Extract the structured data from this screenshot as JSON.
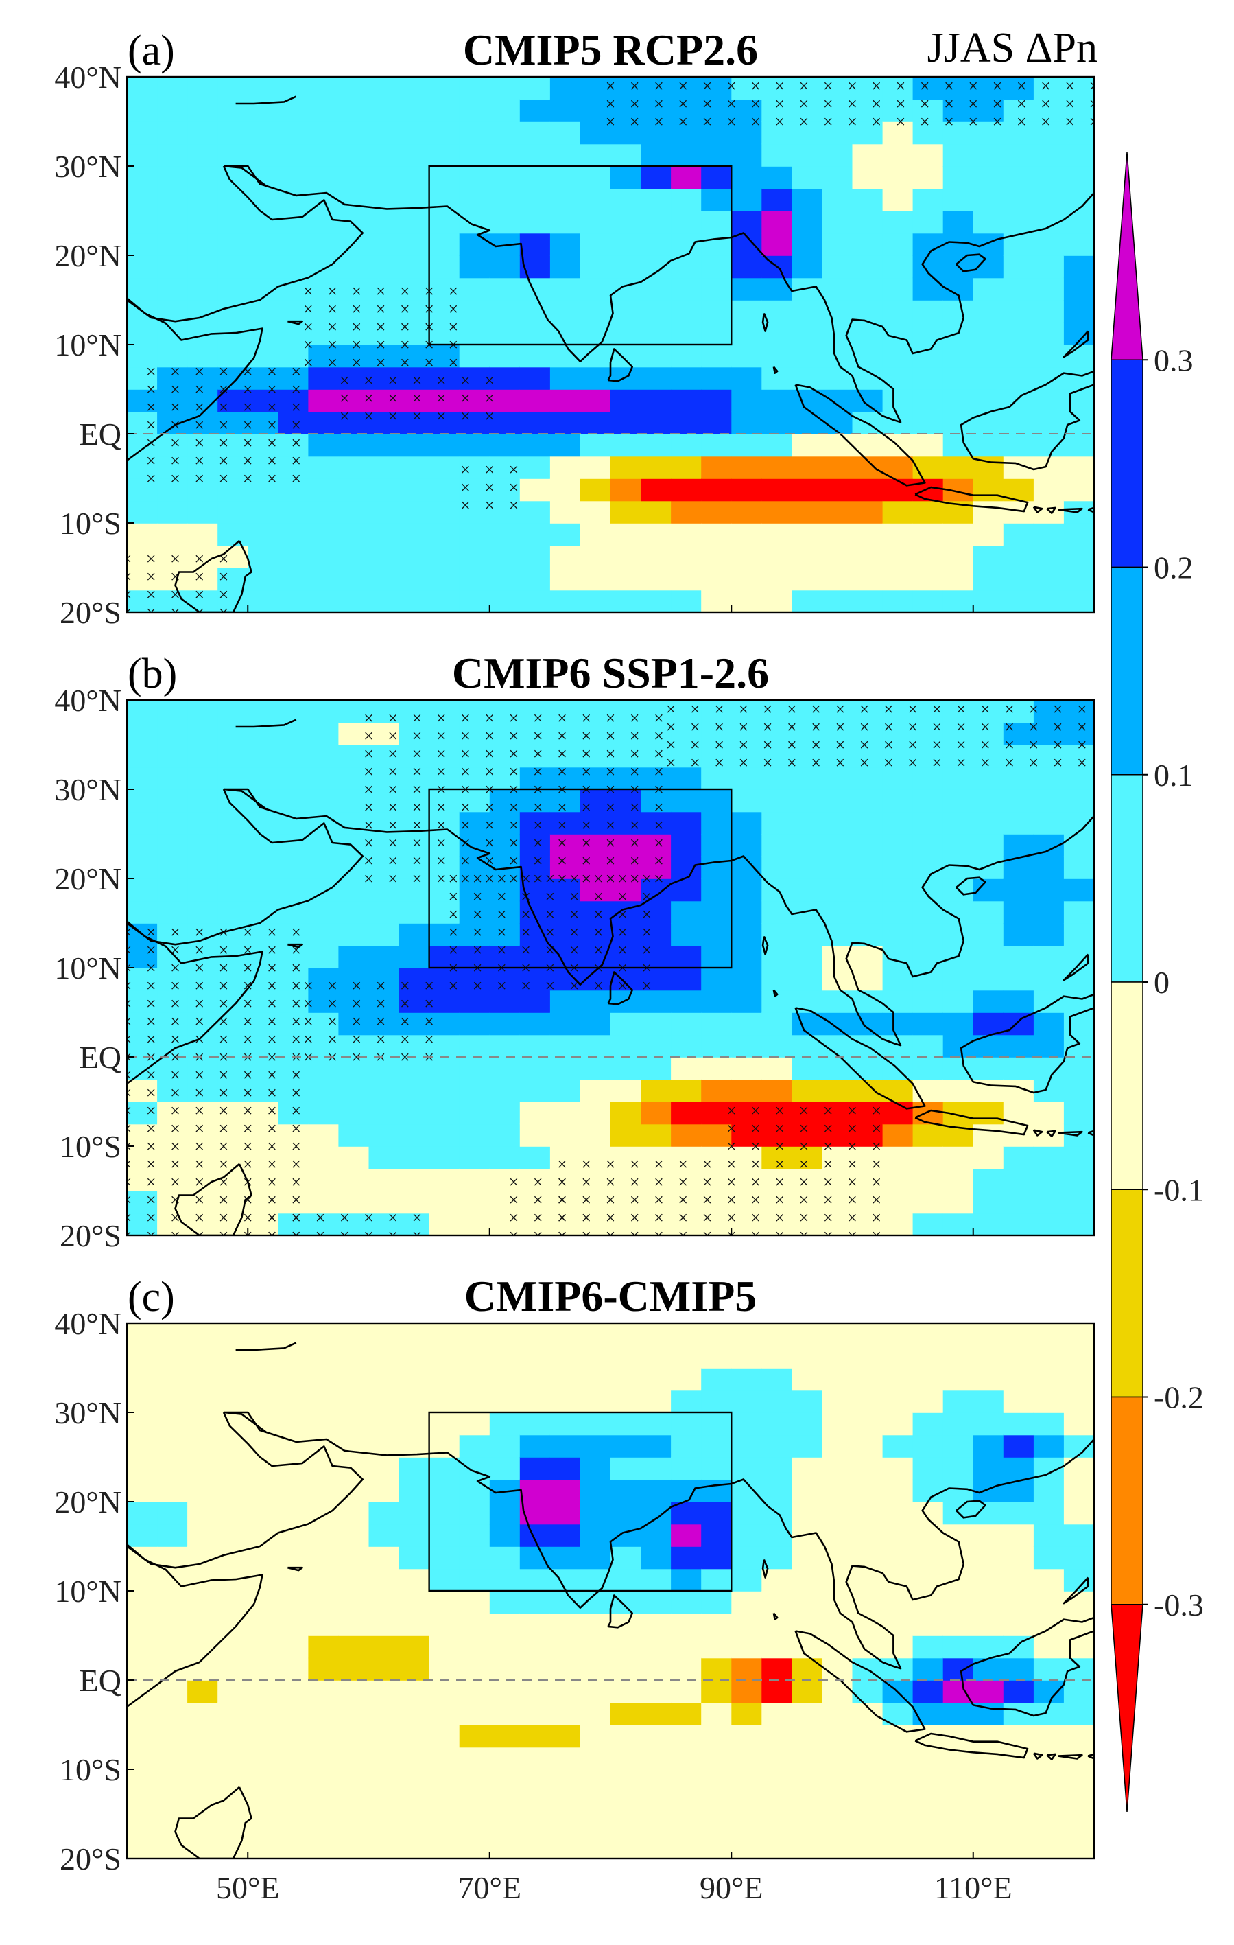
{
  "variable_label": "JJAS ΔPn",
  "panels": [
    {
      "label": "(a)",
      "title": "CMIP5 RCP2.6",
      "base": 0.05,
      "blobs": [
        [
          85,
          35,
          14,
          5,
          0.05
        ],
        [
          93,
          22,
          3,
          6,
          0.32
        ],
        [
          86,
          29,
          4,
          2,
          0.25
        ],
        [
          72,
          20,
          5,
          2,
          0.2
        ],
        [
          75,
          20,
          2.5,
          1.5,
          0.15
        ],
        [
          70,
          3,
          22,
          3.5,
          0.28
        ],
        [
          60,
          5,
          14,
          4,
          0.1
        ],
        [
          90,
          2,
          12,
          3,
          0.06
        ],
        [
          97,
          -6,
          16,
          3.5,
          -0.52
        ],
        [
          84,
          -7,
          6,
          3,
          -0.12
        ],
        [
          108,
          20,
          4,
          5,
          0.12
        ],
        [
          57,
          15,
          7,
          3,
          0.05
        ],
        [
          110,
          38,
          5,
          3,
          0.1
        ],
        [
          104,
          30,
          4,
          4,
          -0.16
        ],
        [
          44,
          -14,
          5,
          4,
          -0.13
        ],
        [
          92,
          -15,
          24,
          5,
          -0.09
        ],
        [
          119,
          15,
          2.5,
          6,
          0.14
        ],
        [
          82,
          37,
          8,
          3,
          0.08
        ]
      ],
      "hatch": [
        [
          40,
          36,
          20,
          40
        ],
        [
          80,
          120,
          35,
          40
        ],
        [
          55,
          68,
          8,
          16
        ],
        [
          42,
          55,
          -5,
          8
        ],
        [
          58,
          70,
          2,
          6
        ],
        [
          68,
          72,
          -8,
          -4
        ],
        [
          44,
          48,
          -20,
          -14
        ],
        [
          40,
          42,
          -20,
          -14
        ]
      ]
    },
    {
      "label": "(b)",
      "title": "CMIP6 SSP1-2.6",
      "base": 0.04,
      "blobs": [
        [
          80,
          22,
          10,
          9,
          0.32
        ],
        [
          72,
          10,
          14,
          4,
          0.22
        ],
        [
          66,
          5,
          12,
          3.5,
          0.12
        ],
        [
          88,
          8,
          7,
          5,
          0.08
        ],
        [
          96,
          -7,
          14,
          3.5,
          -0.5
        ],
        [
          88,
          -5,
          6,
          3,
          -0.12
        ],
        [
          112,
          3,
          6,
          3,
          0.2
        ],
        [
          100,
          4,
          4,
          2.5,
          0.15
        ],
        [
          115,
          19,
          4,
          7,
          0.16
        ],
        [
          117,
          37,
          5,
          3,
          0.1
        ],
        [
          85,
          -16,
          30,
          5,
          -0.08
        ],
        [
          48,
          -10,
          12,
          6,
          -0.07
        ],
        [
          41,
          12,
          2,
          3,
          0.1
        ],
        [
          47,
          -20,
          4,
          3,
          -0.12
        ],
        [
          99,
          10,
          4,
          4,
          -0.08
        ],
        [
          104,
          30,
          5,
          4,
          -0.04
        ],
        [
          60,
          37,
          4,
          3,
          -0.05
        ],
        [
          40,
          -3,
          2,
          2,
          -0.08
        ]
      ],
      "hatch": [
        [
          40,
          54,
          -20,
          14
        ],
        [
          60,
          84,
          20,
          38
        ],
        [
          67,
          84,
          8,
          20
        ],
        [
          55,
          65,
          0,
          8
        ],
        [
          85,
          120,
          33,
          40
        ],
        [
          90,
          102,
          -10,
          -6
        ],
        [
          76,
          102,
          -20,
          -12
        ],
        [
          72,
          76,
          -20,
          -14
        ],
        [
          52,
          60,
          -20,
          -18
        ],
        [
          62,
          64,
          -20,
          -18
        ]
      ]
    },
    {
      "label": "(c)",
      "title": "CMIP6-CMIP5",
      "base": -0.02,
      "blobs": [
        [
          75,
          20,
          3,
          6,
          0.3
        ],
        [
          87,
          16,
          3,
          5,
          0.3
        ],
        [
          78,
          18,
          12,
          8,
          0.15
        ],
        [
          82,
          27,
          4,
          2,
          0.2
        ],
        [
          60,
          3,
          10,
          4,
          -0.12
        ],
        [
          72,
          -7,
          6,
          2,
          -0.16
        ],
        [
          84,
          -4,
          6,
          2,
          -0.1
        ],
        [
          93,
          0,
          4,
          3,
          -0.35
        ],
        [
          110,
          26,
          5,
          5,
          0.1
        ],
        [
          112,
          21,
          4,
          2.5,
          0.12
        ],
        [
          111,
          -1,
          6,
          3,
          0.28
        ],
        [
          108,
          -1,
          5,
          3,
          0.15
        ],
        [
          114,
          26,
          3,
          2,
          0.25
        ],
        [
          112,
          15,
          2,
          3,
          -0.07
        ],
        [
          92,
          30,
          6,
          4,
          0.07
        ],
        [
          47,
          -2,
          2,
          2,
          -0.1
        ],
        [
          42,
          18,
          3,
          3,
          0.05
        ],
        [
          118,
          14,
          2.5,
          3,
          0.06
        ],
        [
          67,
          38,
          4,
          2,
          -0.08
        ]
      ],
      "hatch": []
    }
  ],
  "regions": [
    {
      "name": "box",
      "lon": [
        65,
        90
      ],
      "lat": [
        10,
        30
      ]
    }
  ],
  "lat_ticks": [
    "40°N",
    "30°N",
    "20°N",
    "10°N",
    "EQ",
    "10°S",
    "20°S"
  ],
  "lon_ticks": [
    "50°E",
    "70°E",
    "90°E",
    "110°E"
  ],
  "colorbar": {
    "tick_labels": [
      "0.3",
      "0.2",
      "0.1",
      "0",
      "-0.1",
      "-0.2",
      "-0.3"
    ],
    "colors": [
      "#ff0000",
      "#ff8800",
      "#eed400",
      "#ffffc8",
      "#55f5ff",
      "#00b0ff",
      "#0a30ff",
      "#d000d0"
    ],
    "levels": [
      -0.3,
      -0.2,
      -0.1,
      0,
      0.1,
      0.2,
      0.3
    ]
  }
}
